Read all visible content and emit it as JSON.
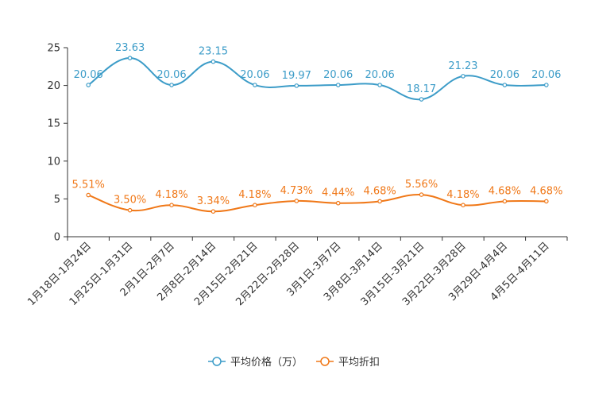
{
  "chart_data": {
    "type": "line",
    "categories": [
      "1月18日-1月24日",
      "1月25日-1月31日",
      "2月1日-2月7日",
      "2月8日-2月14日",
      "2月15日-2月21日",
      "2月22日-2月28日",
      "3月1日-3月7日",
      "3月8日-3月14日",
      "3月15日-3月21日",
      "3月22日-3月28日",
      "3月29日-4月4日",
      "4月5日-4月11日"
    ],
    "ylim": [
      0,
      25
    ],
    "yticks": [
      "0",
      "5",
      "10",
      "15",
      "20",
      "25"
    ],
    "series": [
      {
        "name": "平均价格（万）",
        "color": "#3c9cc8",
        "values": [
          20.06,
          23.63,
          20.06,
          23.15,
          20.06,
          19.97,
          20.06,
          20.06,
          18.17,
          21.23,
          20.06,
          20.06
        ],
        "labels": [
          "20.06",
          "23.63",
          "20.06",
          "23.15",
          "20.06",
          "19.97",
          "20.06",
          "20.06",
          "18.17",
          "21.23",
          "20.06",
          "20.06"
        ]
      },
      {
        "name": "平均折扣",
        "color": "#f07818",
        "values": [
          5.51,
          3.5,
          4.18,
          3.34,
          4.18,
          4.73,
          4.44,
          4.68,
          5.56,
          4.18,
          4.68,
          4.68
        ],
        "labels": [
          "5.51%",
          "3.50%",
          "4.18%",
          "3.34%",
          "4.18%",
          "4.73%",
          "4.44%",
          "4.68%",
          "5.56%",
          "4.18%",
          "4.68%",
          "4.68%"
        ]
      }
    ],
    "legend_position": "bottom"
  }
}
